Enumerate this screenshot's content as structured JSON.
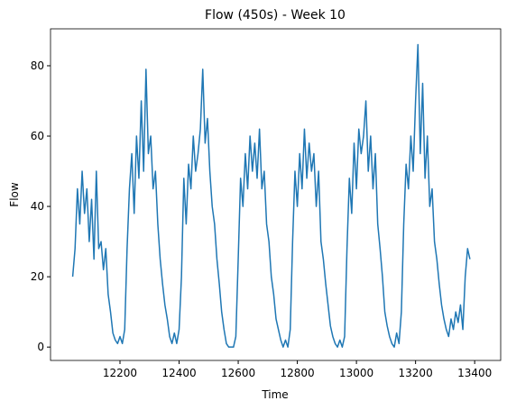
{
  "chart_data": {
    "type": "line",
    "title": "Flow (450s) - Week 10",
    "x_label": "Time",
    "y_label": "Flow",
    "color": "#1f77b4",
    "xlim": [
      11965,
      13488
    ],
    "ylim": [
      -3.8,
      90.5
    ],
    "xticks": [
      12200,
      12400,
      12600,
      12800,
      13000,
      13200,
      13400
    ],
    "yticks": [
      0,
      20,
      40,
      60,
      80
    ],
    "x": [
      12040,
      12048,
      12056,
      12064,
      12072,
      12080,
      12088,
      12096,
      12104,
      12112,
      12120,
      12128,
      12136,
      12144,
      12152,
      12160,
      12168,
      12176,
      12184,
      12192,
      12200,
      12208,
      12216,
      12224,
      12232,
      12240,
      12248,
      12256,
      12264,
      12272,
      12280,
      12288,
      12296,
      12304,
      12312,
      12320,
      12328,
      12336,
      12344,
      12352,
      12360,
      12368,
      12376,
      12384,
      12392,
      12400,
      12408,
      12416,
      12424,
      12432,
      12440,
      12448,
      12456,
      12464,
      12472,
      12480,
      12488,
      12496,
      12504,
      12512,
      12520,
      12528,
      12536,
      12544,
      12552,
      12560,
      12568,
      12576,
      12584,
      12592,
      12600,
      12608,
      12616,
      12624,
      12632,
      12640,
      12648,
      12656,
      12664,
      12672,
      12680,
      12688,
      12696,
      12704,
      12712,
      12720,
      12728,
      12736,
      12744,
      12752,
      12760,
      12768,
      12776,
      12784,
      12792,
      12800,
      12808,
      12816,
      12824,
      12832,
      12840,
      12848,
      12856,
      12864,
      12872,
      12880,
      12888,
      12896,
      12904,
      12912,
      12920,
      12928,
      12936,
      12944,
      12952,
      12960,
      12968,
      12976,
      12984,
      12992,
      13000,
      13008,
      13016,
      13024,
      13032,
      13040,
      13048,
      13056,
      13064,
      13072,
      13080,
      13088,
      13096,
      13104,
      13112,
      13120,
      13128,
      13136,
      13144,
      13152,
      13160,
      13168,
      13176,
      13184,
      13192,
      13200,
      13208,
      13216,
      13224,
      13232,
      13240,
      13248,
      13256,
      13264,
      13272,
      13280,
      13288,
      13296,
      13304,
      13312,
      13320,
      13328,
      13336,
      13344,
      13352,
      13360,
      13368,
      13376,
      13384
    ],
    "values": [
      20,
      28,
      45,
      35,
      50,
      38,
      45,
      30,
      42,
      25,
      50,
      28,
      30,
      22,
      28,
      15,
      10,
      4,
      2,
      1,
      3,
      1,
      5,
      28,
      45,
      55,
      38,
      60,
      48,
      70,
      50,
      79,
      55,
      60,
      45,
      50,
      35,
      25,
      18,
      12,
      8,
      3,
      1,
      4,
      1,
      5,
      20,
      48,
      35,
      52,
      45,
      60,
      50,
      55,
      62,
      79,
      58,
      65,
      50,
      40,
      35,
      25,
      18,
      10,
      5,
      1,
      0,
      0,
      0,
      3,
      25,
      48,
      40,
      55,
      45,
      60,
      50,
      58,
      48,
      62,
      45,
      50,
      35,
      30,
      20,
      15,
      8,
      5,
      2,
      0,
      2,
      0,
      5,
      30,
      50,
      40,
      55,
      45,
      62,
      48,
      58,
      50,
      55,
      40,
      50,
      30,
      25,
      18,
      12,
      6,
      3,
      1,
      0,
      2,
      0,
      3,
      28,
      48,
      38,
      58,
      45,
      62,
      55,
      60,
      70,
      50,
      60,
      45,
      55,
      35,
      28,
      20,
      10,
      6,
      3,
      1,
      0,
      4,
      1,
      10,
      35,
      52,
      45,
      60,
      50,
      70,
      86,
      55,
      75,
      48,
      60,
      40,
      45,
      30,
      25,
      18,
      12,
      8,
      5,
      3,
      8,
      5,
      10,
      7,
      12,
      5,
      20,
      28,
      25
    ]
  }
}
